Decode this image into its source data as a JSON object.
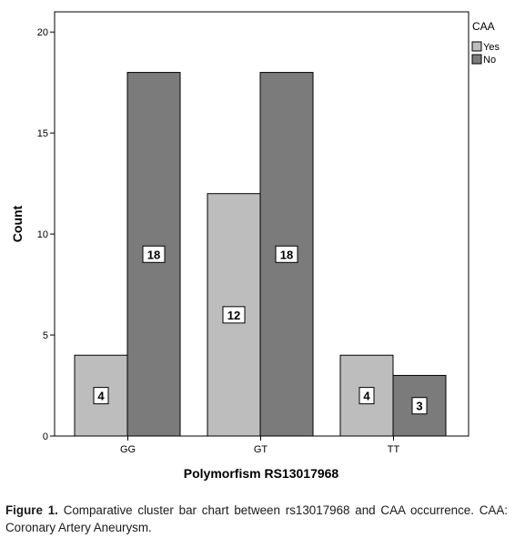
{
  "chart_data": {
    "type": "bar",
    "categories": [
      "GG",
      "GT",
      "TT"
    ],
    "series": [
      {
        "name": "Yes",
        "values": [
          4,
          12,
          4
        ],
        "color": "#bdbdbd"
      },
      {
        "name": "No",
        "values": [
          18,
          18,
          3
        ],
        "color": "#7b7b7b"
      }
    ],
    "xlabel": "Polymorfism RS13017968",
    "ylabel": "Count",
    "ylim": [
      0,
      21
    ],
    "yticks": [
      0,
      5,
      10,
      15,
      20
    ],
    "legend": {
      "title": "CAA",
      "placement": "top-right"
    },
    "grid": false,
    "data_labels": true
  },
  "caption": {
    "lead": "Figure 1.",
    "text": "Comparative cluster bar chart between rs13017968 and CAA occurrence. CAA: Coronary Artery Aneurysm."
  }
}
